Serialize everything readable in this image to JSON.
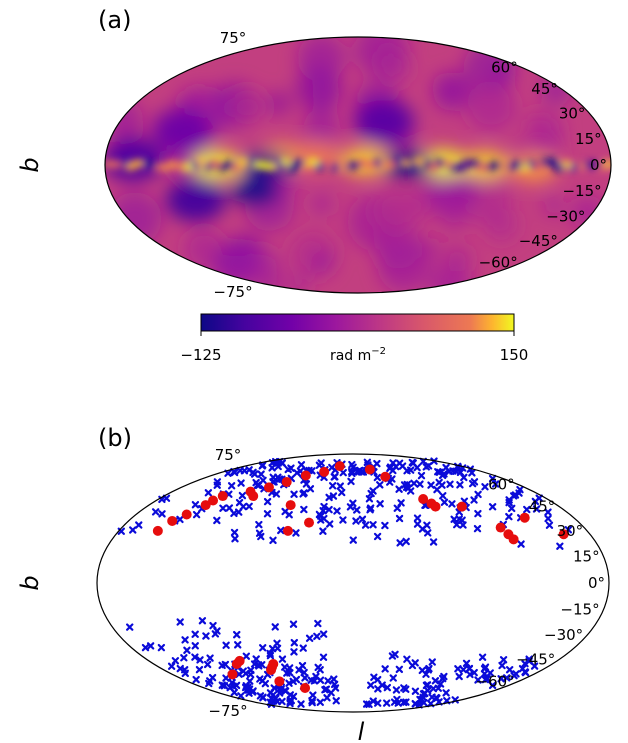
{
  "chart_data": [
    {
      "type": "heatmap",
      "panel_label": "(a)",
      "projection": "mollweide",
      "ylabel": "b",
      "lat_tick_labels": [
        "75°",
        "60°",
        "45°",
        "30°",
        "15°",
        "0°",
        "−15°",
        "−30°",
        "−45°",
        "−60°",
        "−75°"
      ],
      "lat_tick_values": [
        75,
        60,
        45,
        30,
        15,
        0,
        -15,
        -30,
        -45,
        -60,
        -75
      ],
      "colorbar": {
        "min": -125,
        "max": 150,
        "min_label": "−125",
        "max_label": "150",
        "label": "rad m",
        "label_exponent": "−2",
        "colormap": "plasma"
      },
      "features": [
        {
          "l": 100,
          "b": 0,
          "value": 150
        },
        {
          "l": 55,
          "b": 4,
          "value": 130
        },
        {
          "l": 30,
          "b": 5,
          "value": 110
        },
        {
          "l": -5,
          "b": 2,
          "value": 140
        },
        {
          "l": -60,
          "b": 1,
          "value": 150
        },
        {
          "l": -90,
          "b": 0,
          "value": 140
        },
        {
          "l": -125,
          "b": -2,
          "value": 120
        },
        {
          "l": 75,
          "b": -15,
          "value": -120
        },
        {
          "l": 65,
          "b": 0,
          "value": -115
        },
        {
          "l": 120,
          "b": -20,
          "value": -90
        },
        {
          "l": -35,
          "b": 0,
          "value": -125
        },
        {
          "l": -20,
          "b": 25,
          "value": -70
        },
        {
          "l": 160,
          "b": 3,
          "value": -80
        },
        {
          "l": 130,
          "b": 20,
          "value": -50
        }
      ]
    },
    {
      "type": "scatter",
      "panel_label": "(b)",
      "projection": "mollweide",
      "xlabel": "l",
      "ylabel": "b",
      "lat_tick_labels": [
        "75°",
        "60°",
        "45°",
        "30°",
        "15°",
        "0°",
        "−15°",
        "−30°",
        "−45°",
        "−60°",
        "−75°"
      ],
      "lat_tick_values": [
        75,
        60,
        45,
        30,
        15,
        0,
        -15,
        -30,
        -45,
        -60,
        -75
      ],
      "series": [
        {
          "marker": "x",
          "color": "#0b0bd9",
          "north": {
            "count": 260,
            "b_range": [
              20,
              80
            ]
          },
          "south": [
            {
              "count": 150,
              "l_range": [
                20,
                170
              ],
              "b_range": [
                -80,
                -20
              ]
            },
            {
              "count": 90,
              "l_range": [
                -170,
                -20
              ],
              "b_range": [
                -80,
                -40
              ]
            }
          ]
        },
        {
          "marker": "o",
          "color": "#e60d0d",
          "points": [
            [
              150,
              30
            ],
            [
              145,
              36
            ],
            [
              138,
              40
            ],
            [
              130,
              46
            ],
            [
              124,
              52
            ],
            [
              128,
              49
            ],
            [
              102,
              55
            ],
            [
              95,
              52
            ],
            [
              88,
              58
            ],
            [
              75,
              62
            ],
            [
              60,
              67
            ],
            [
              40,
              70
            ],
            [
              22,
              75
            ],
            [
              55,
              46
            ],
            [
              50,
              30
            ],
            [
              35,
              35
            ],
            [
              -25,
              72
            ],
            [
              -40,
              66
            ],
            [
              -65,
              50
            ],
            [
              -70,
              47
            ],
            [
              -72,
              45
            ],
            [
              -95,
              45
            ],
            [
              -115,
              32
            ],
            [
              -118,
              28
            ],
            [
              -120,
              25
            ],
            [
              -140,
              38
            ],
            [
              -160,
              28
            ],
            [
              120,
              -55
            ],
            [
              105,
              -48
            ],
            [
              100,
              -46
            ],
            [
              78,
              -52
            ],
            [
              75,
              -50
            ],
            [
              72,
              -48
            ],
            [
              80,
              -60
            ],
            [
              58,
              -65
            ]
          ]
        }
      ]
    }
  ]
}
